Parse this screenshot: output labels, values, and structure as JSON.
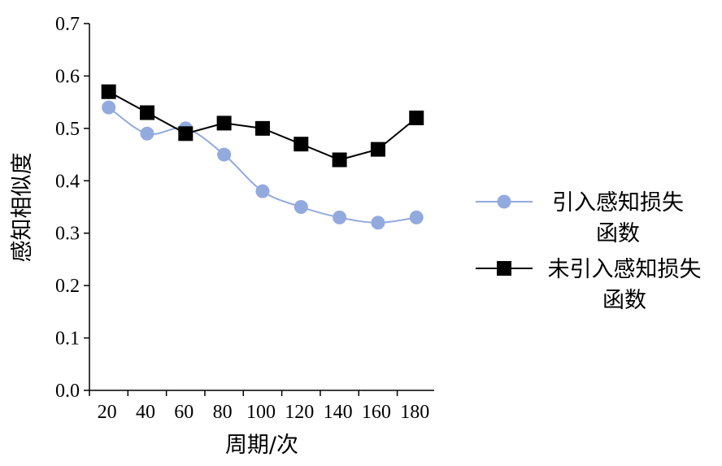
{
  "chart_data": {
    "type": "line",
    "xlabel": "周期/次",
    "ylabel": "感知相似度",
    "categories": [
      "20",
      "40",
      "60",
      "80",
      "100",
      "120",
      "140",
      "160",
      "180"
    ],
    "ylim": [
      0.0,
      0.7
    ],
    "yticks": [
      "0.0",
      "0.1",
      "0.2",
      "0.3",
      "0.4",
      "0.5",
      "0.6",
      "0.7"
    ],
    "grid": false,
    "legend_position": "right",
    "series": [
      {
        "name": "引入感知损失函数",
        "legend_lines": [
          "引入感知损失",
          "函数"
        ],
        "color": "#92aade",
        "marker": "circle",
        "values": [
          0.54,
          0.49,
          0.5,
          0.45,
          0.38,
          0.35,
          0.33,
          0.32,
          0.33
        ]
      },
      {
        "name": "未引入感知损失函数",
        "legend_lines": [
          "未引入感知损失",
          "函数"
        ],
        "color": "#000000",
        "marker": "square",
        "values": [
          0.57,
          0.53,
          0.49,
          0.51,
          0.5,
          0.47,
          0.44,
          0.46,
          0.52
        ]
      }
    ]
  }
}
